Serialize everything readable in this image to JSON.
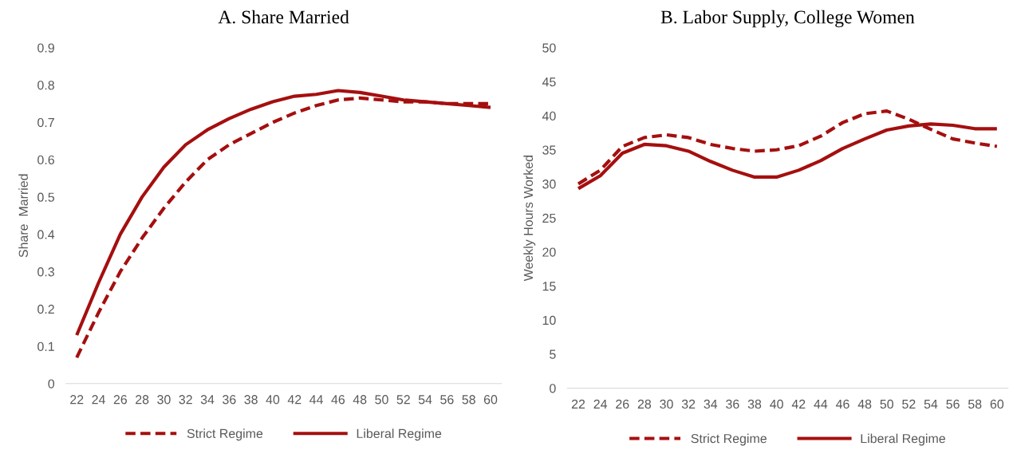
{
  "chart_data": [
    {
      "type": "line",
      "title": "A. Share Married",
      "ylabel": "Share  Married",
      "categories": [
        "22",
        "24",
        "26",
        "28",
        "30",
        "32",
        "34",
        "36",
        "38",
        "40",
        "42",
        "44",
        "46",
        "48",
        "50",
        "52",
        "54",
        "56",
        "58",
        "60"
      ],
      "series": [
        {
          "name": "Strict Regime",
          "color": "#a50f0f",
          "line_style": "dashed",
          "values": [
            0.07,
            0.19,
            0.3,
            0.39,
            0.47,
            0.54,
            0.6,
            0.64,
            0.67,
            0.7,
            0.725,
            0.745,
            0.76,
            0.765,
            0.76,
            0.755,
            0.755,
            0.75,
            0.75,
            0.75
          ]
        },
        {
          "name": "Liberal Regime",
          "color": "#a50f0f",
          "line_style": "solid",
          "values": [
            0.13,
            0.27,
            0.4,
            0.5,
            0.58,
            0.64,
            0.68,
            0.71,
            0.735,
            0.755,
            0.77,
            0.775,
            0.785,
            0.78,
            0.77,
            0.76,
            0.755,
            0.75,
            0.745,
            0.74
          ]
        }
      ],
      "ylim": [
        0,
        0.9
      ],
      "yticks": [
        0,
        0.1,
        0.2,
        0.3,
        0.4,
        0.5,
        0.6,
        0.7,
        0.8,
        0.9
      ],
      "grid": false,
      "legend": "bottom",
      "marker": "none"
    },
    {
      "type": "line",
      "title": "B. Labor Supply, College Women",
      "ylabel": "Weekly Hours Worked",
      "categories": [
        "22",
        "24",
        "26",
        "28",
        "30",
        "32",
        "34",
        "36",
        "38",
        "40",
        "42",
        "44",
        "46",
        "48",
        "50",
        "52",
        "54",
        "56",
        "58",
        "60"
      ],
      "series": [
        {
          "name": "Strict Regime",
          "color": "#a50f0f",
          "line_style": "dashed",
          "values": [
            30,
            32,
            35.5,
            36.8,
            37.2,
            36.8,
            35.8,
            35.2,
            34.8,
            35,
            35.6,
            37,
            39,
            40.3,
            40.7,
            39.5,
            38,
            36.6,
            36,
            35.5
          ]
        },
        {
          "name": "Liberal Regime",
          "color": "#a50f0f",
          "line_style": "solid",
          "values": [
            29.3,
            31.2,
            34.5,
            35.8,
            35.6,
            34.8,
            33.3,
            32,
            31,
            31,
            32,
            33.4,
            35.2,
            36.6,
            37.9,
            38.5,
            38.8,
            38.6,
            38.1,
            38.1
          ]
        }
      ],
      "ylim": [
        0,
        50
      ],
      "yticks": [
        0,
        5,
        10,
        15,
        20,
        25,
        30,
        35,
        40,
        45,
        50
      ],
      "grid": false,
      "legend": "bottom",
      "marker": "none"
    }
  ]
}
